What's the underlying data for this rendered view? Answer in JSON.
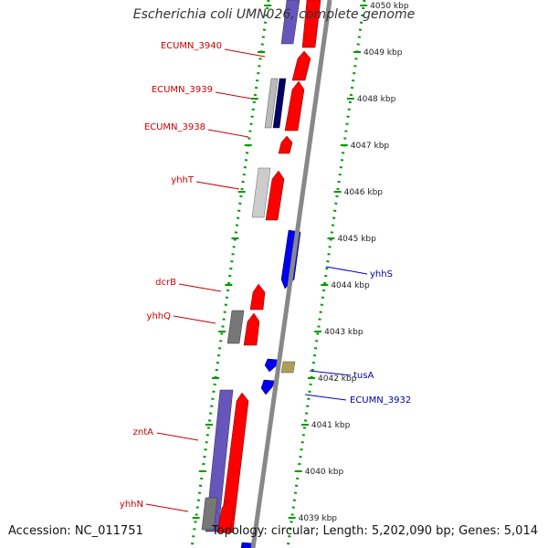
{
  "title": "Escherichia coli UMN026, complete genome",
  "footer": {
    "accession": "Accession: NC_011751",
    "summary": "Topology: circular; Length: 5,202,090 bp; Genes: 5,014"
  },
  "colors": {
    "forward": "#ff0000",
    "reverse": "#0000ee",
    "backbone": "#888888",
    "dots": "#009900",
    "gray": "#aaaaaa",
    "navy": "#000066",
    "purple": "#6655bb",
    "olive": "#aaa055"
  },
  "scale_labels": [
    {
      "kbp": 4050,
      "text": "4050 kbp"
    },
    {
      "kbp": 4049,
      "text": "4049 kbp"
    },
    {
      "kbp": 4048,
      "text": "4048 kbp"
    },
    {
      "kbp": 4047,
      "text": "4047 kbp"
    },
    {
      "kbp": 4046,
      "text": "4046 kbp"
    },
    {
      "kbp": 4045,
      "text": "4045 kbp"
    },
    {
      "kbp": 4044,
      "text": "4044 kbp"
    },
    {
      "kbp": 4043,
      "text": "4043 kbp"
    },
    {
      "kbp": 4042,
      "text": "4042 kbp"
    },
    {
      "kbp": 4041,
      "text": "4041 kbp"
    },
    {
      "kbp": 4040,
      "text": "4040 kbp"
    },
    {
      "kbp": 4039,
      "text": "4039 kbp"
    }
  ],
  "gene_labels": [
    {
      "text": "ECUMN_3940",
      "strand": "forward"
    },
    {
      "text": "ECUMN_3939",
      "strand": "forward"
    },
    {
      "text": "ECUMN_3938",
      "strand": "forward"
    },
    {
      "text": "yhhT",
      "strand": "forward"
    },
    {
      "text": "dcrB",
      "strand": "forward"
    },
    {
      "text": "yhhQ",
      "strand": "forward"
    },
    {
      "text": "zntA",
      "strand": "forward"
    },
    {
      "text": "yhhN",
      "strand": "forward"
    },
    {
      "text": "yhhS",
      "strand": "reverse"
    },
    {
      "text": "tusA",
      "strand": "reverse"
    },
    {
      "text": "ECUMN_3932",
      "strand": "reverse"
    }
  ]
}
